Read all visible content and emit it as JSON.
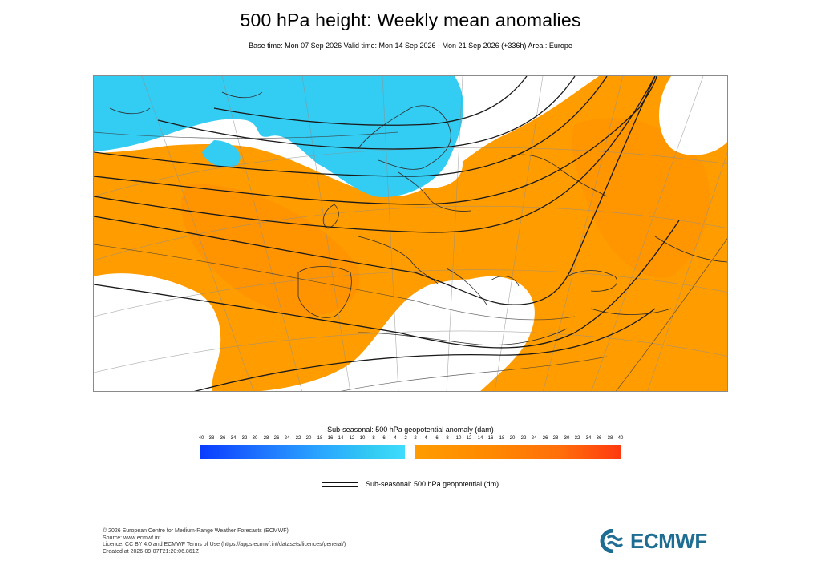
{
  "header": {
    "title": "500 hPa height: Weekly mean anomalies",
    "subtitle": "Base time: Mon 07 Sep 2026 Valid time: Mon 14 Sep 2026 - Mon 21 Sep 2026 (+336h) Area : Europe"
  },
  "colorbar": {
    "title": "Sub-seasonal: 500 hPa geopotential anomaly (dam)",
    "negative_ticks": [
      "-40",
      "-38",
      "-36",
      "-34",
      "-32",
      "-30",
      "-28",
      "-26",
      "-24",
      "-22",
      "-20",
      "-18",
      "-16",
      "-14",
      "-12",
      "-10",
      "-8",
      "-6",
      "-4",
      "-2"
    ],
    "positive_ticks": [
      "2",
      "4",
      "6",
      "8",
      "10",
      "12",
      "14",
      "16",
      "18",
      "20",
      "22",
      "24",
      "26",
      "28",
      "30",
      "32",
      "34",
      "36",
      "38",
      "40"
    ],
    "negative_color": "#2aa8ff",
    "positive_color": "#ff8a00"
  },
  "contour_legend": {
    "label": "Sub-seasonal: 500 hPa geopotential (dm)"
  },
  "map": {
    "area": "Europe",
    "colors": {
      "positive_anomaly": "#ff9c00",
      "negative_anomaly": "#33ccf2",
      "neutral": "#ffffff",
      "contour": "#222222",
      "grid": "#9a9a9a"
    }
  },
  "credits": {
    "line1": "© 2026 European Centre for Medium-Range Weather Forecasts (ECMWF)",
    "line2": "Source: www.ecmwf.int",
    "line3": "Licence: CC BY 4.0 and ECMWF Terms of Use (https://apps.ecmwf.int/datasets/licences/general/)",
    "line4": "Created at 2026-09-07T21:20:06.861Z"
  },
  "logo": {
    "text": "ECMWF",
    "color": "#1d6e92"
  }
}
